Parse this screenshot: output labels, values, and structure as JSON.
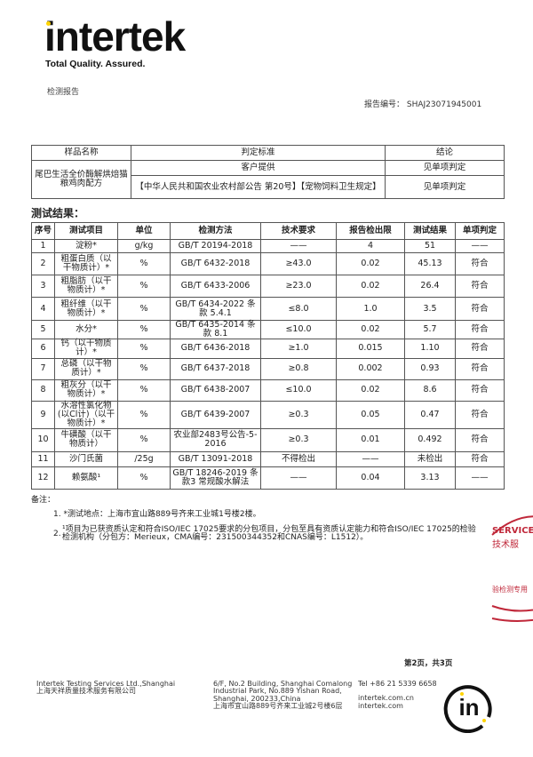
{
  "header": {
    "logo_text": "intertek",
    "tagline": "Total Quality. Assured.",
    "doc_title": "检测报告",
    "report_no_label": "报告编号：",
    "report_no": "SHAJ23071945001"
  },
  "summary": {
    "headers": [
      "样品名称",
      "判定标准",
      "结论"
    ],
    "sample_name": "尾巴生活全价酶解烘焙猫粮鸡肉配方",
    "rows": [
      {
        "standard": "客户提供",
        "conclusion": "见单项判定"
      },
      {
        "standard": "【中华人民共和国农业农村部公告 第20号】【宠物饲料卫生规定】",
        "conclusion": "见单项判定"
      }
    ]
  },
  "results": {
    "title": "测试结果：",
    "headers": [
      "序号",
      "测试项目",
      "单位",
      "检测方法",
      "技术要求",
      "报告检出限",
      "测试结果",
      "单项判定"
    ],
    "rows": [
      [
        "1",
        "淀粉*",
        "g/kg",
        "GB/T 20194-2018",
        "——",
        "4",
        "51",
        "——"
      ],
      [
        "2",
        "粗蛋白质（以干物质计）*",
        "%",
        "GB/T 6432-2018",
        "≥43.0",
        "0.02",
        "45.13",
        "符合"
      ],
      [
        "3",
        "粗脂肪（以干物质计）*",
        "%",
        "GB/T 6433-2006",
        "≥23.0",
        "0.02",
        "26.4",
        "符合"
      ],
      [
        "4",
        "粗纤维（以干物质计）*",
        "%",
        "GB/T 6434-2022 条款 5.4.1",
        "≤8.0",
        "1.0",
        "3.5",
        "符合"
      ],
      [
        "5",
        "水分*",
        "%",
        "GB/T 6435-2014 条款 8.1",
        "≤10.0",
        "0.02",
        "5.7",
        "符合"
      ],
      [
        "6",
        "钙（以干物质计）*",
        "%",
        "GB/T 6436-2018",
        "≥1.0",
        "0.015",
        "1.10",
        "符合"
      ],
      [
        "7",
        "总磷（以干物质计）*",
        "%",
        "GB/T 6437-2018",
        "≥0.8",
        "0.002",
        "0.93",
        "符合"
      ],
      [
        "8",
        "粗灰分（以干物质计）*",
        "%",
        "GB/T 6438-2007",
        "≤10.0",
        "0.02",
        "8.6",
        "符合"
      ],
      [
        "9",
        "水溶性氯化物(以Cl计)（以干物质计）*",
        "%",
        "GB/T 6439-2007",
        "≥0.3",
        "0.05",
        "0.47",
        "符合"
      ],
      [
        "10",
        "牛磺酸（以干物质计）",
        "%",
        "农业部2483号公告-5-2016",
        "≥0.3",
        "0.01",
        "0.492",
        "符合"
      ],
      [
        "11",
        "沙门氏菌",
        "/25g",
        "GB/T 13091-2018",
        "不得检出",
        "——",
        "未检出",
        "符合"
      ],
      [
        "12",
        "赖氨酸¹",
        "%",
        "GB/T 18246-2019 条款3 常规酸水解法",
        "——",
        "0.04",
        "3.13",
        "——"
      ]
    ]
  },
  "notes": {
    "title": "备注：",
    "items": [
      "1. *测试地点：上海市宜山路889号齐来工业城1号楼2楼。",
      "¹项目为已获资质认定和符合ISO/IEC 17025要求的分包项目，分包至具有资质认定能力和符合ISO/IEC 17025的检验检测机构（分包方：Merieux，CMA编号：231500344352和CNAS编号：L1512）。"
    ],
    "item2_number": "2."
  },
  "stamp": {
    "text": "SERVICE",
    "text2": "技术服",
    "text3": "验检测专用",
    "color": "#c0283a"
  },
  "footer": {
    "page": "第2页，共3页",
    "company_en": "Intertek Testing Services Ltd.,Shanghai",
    "company_cn": "上海天祥质量技术服务有限公司",
    "address": [
      "6/F, No.2 Building, Shanghai Comalong",
      "Industrial Park, No.889 Yishan Road,",
      "Shanghai, 200233,China",
      "上海市宜山路889号齐来工业城2号楼6层"
    ],
    "tel": "Tel +86 21 5339 6658",
    "web_cn": "intertek.com.cn",
    "web": "intertek.com",
    "logo_text": "in"
  },
  "colors": {
    "accent": "#ffd400",
    "stamp": "#c0283a"
  }
}
